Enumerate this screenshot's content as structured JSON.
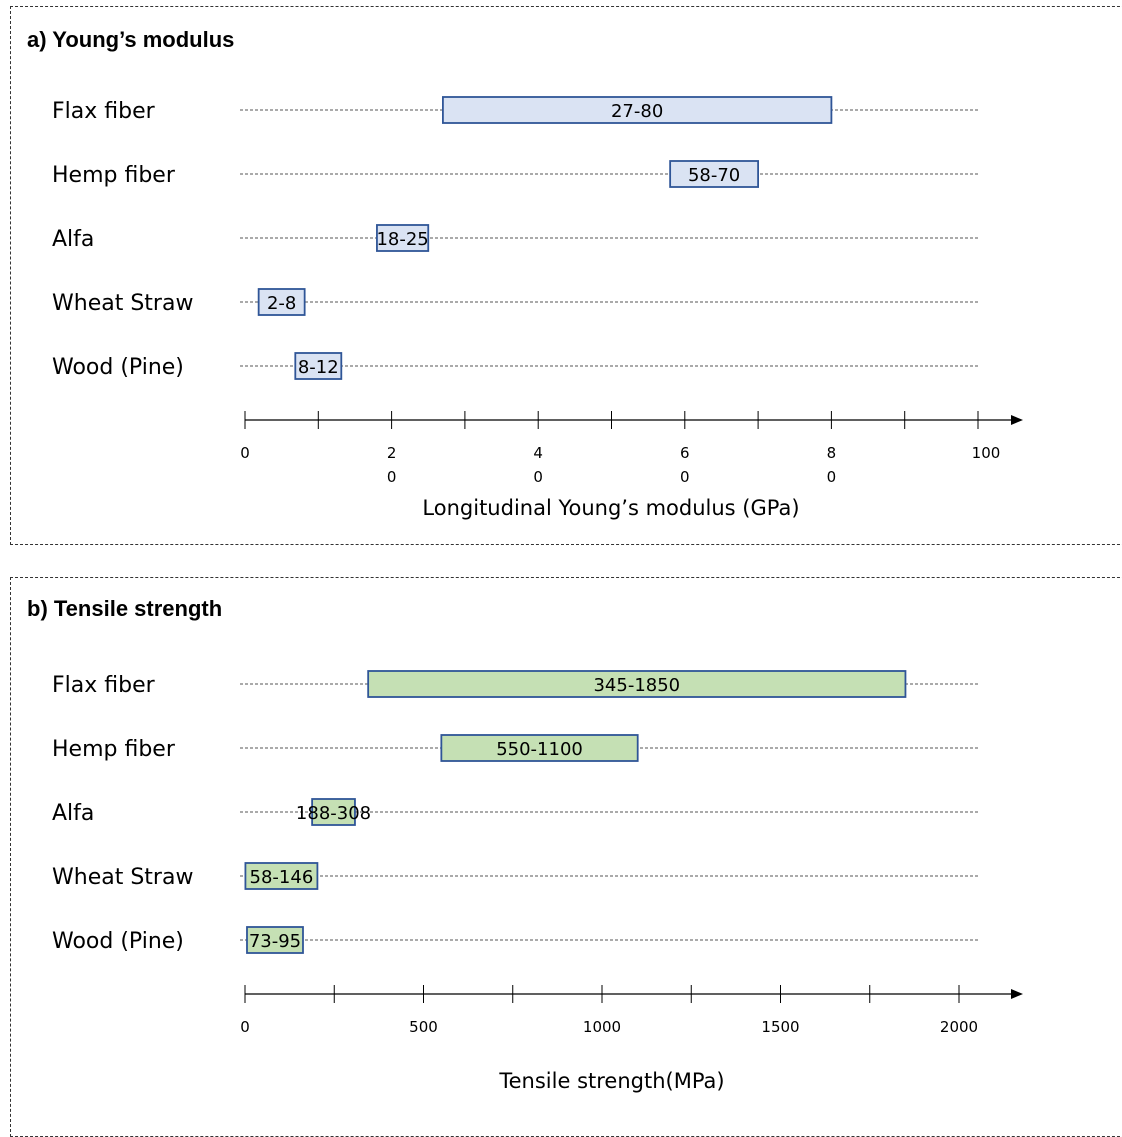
{
  "chart_data": [
    {
      "type": "range_bar",
      "title": "a) Young’s modulus",
      "xlabel": "Longitudinal Young’s modulus (GPa)",
      "xlim": [
        0,
        100
      ],
      "tick_values": [
        0,
        20,
        40,
        60,
        80,
        100
      ],
      "tick_labels": [
        [
          "0"
        ],
        [
          "2",
          "0"
        ],
        [
          "4",
          "0"
        ],
        [
          "6",
          "0"
        ],
        [
          "8",
          "0"
        ],
        [
          "100"
        ]
      ],
      "minor_tick_step": 10,
      "categories": [
        "Flax fiber",
        "Hemp fiber",
        "Alfa",
        "Wheat Straw",
        "Wood (Pine)"
      ],
      "ranges": [
        [
          27,
          80
        ],
        [
          58,
          70
        ],
        [
          18,
          25
        ],
        [
          2,
          8
        ],
        [
          8,
          12
        ]
      ],
      "range_labels": [
        "27-80",
        "58-70",
        "18-25",
        "2-8",
        "8-12"
      ],
      "bar_fill": "#dae3f3",
      "bar_stroke": "#2f5597"
    },
    {
      "type": "range_bar",
      "title": "b) Tensile strength",
      "xlabel": "Tensile strength(MPa)",
      "xlim": [
        0,
        2000
      ],
      "tick_values": [
        0,
        500,
        1000,
        1500,
        2000
      ],
      "tick_labels": [
        [
          "0"
        ],
        [
          "500"
        ],
        [
          "1000"
        ],
        [
          "1500"
        ],
        [
          "2000"
        ]
      ],
      "minor_tick_step": 250,
      "categories": [
        "Flax fiber",
        "Hemp fiber",
        "Alfa",
        "Wheat Straw",
        "Wood (Pine)"
      ],
      "ranges": [
        [
          345,
          1850
        ],
        [
          550,
          1100
        ],
        [
          188,
          308
        ],
        [
          58,
          146
        ],
        [
          73,
          95
        ]
      ],
      "range_labels": [
        "345-1850",
        "550-1100",
        "188-308",
        "58-146",
        "73-95"
      ],
      "bar_fill": "#c5e0b4",
      "bar_stroke": "#2f5597"
    }
  ]
}
